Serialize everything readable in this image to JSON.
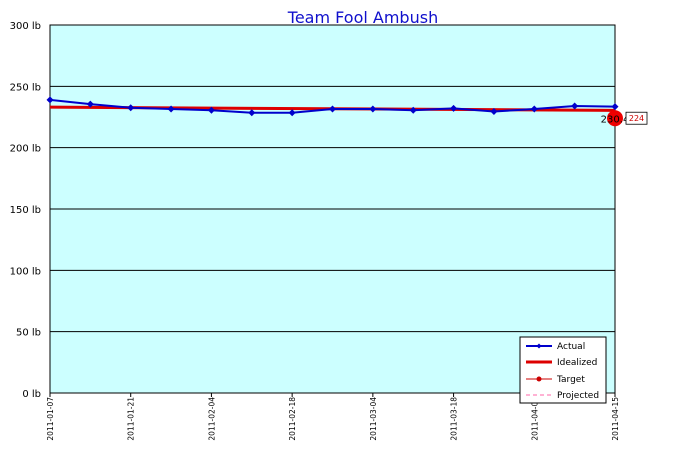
{
  "chart_data": {
    "type": "line",
    "title": "Team Fool Ambush",
    "xlabel": "",
    "ylabel": "",
    "ylim": [
      0,
      300
    ],
    "y_ticks": [
      0,
      50,
      100,
      150,
      200,
      250,
      300
    ],
    "y_tick_labels": [
      "0 lb",
      "50 lb",
      "100 lb",
      "150 lb",
      "200 lb",
      "250 lb",
      "300 lb"
    ],
    "x_tick_labels": [
      "2011-01-07",
      "2011-01-21",
      "2011-02-04",
      "2011-02-18",
      "2011-03-04",
      "2011-03-18",
      "2011-04-01",
      "2011-04-15"
    ],
    "grid": true,
    "legend_position": "bottom-right",
    "colors": {
      "plot_bg": "#ccffff",
      "actual": "#0000cc",
      "idealized": "#dd0000",
      "target": "#cc0000",
      "projected": "#ff66aa",
      "title": "#1010cc"
    },
    "series": [
      {
        "name": "Actual",
        "x": [
          "2011-01-07",
          "2011-01-14",
          "2011-01-21",
          "2011-01-28",
          "2011-02-04",
          "2011-02-11",
          "2011-02-18",
          "2011-02-25",
          "2011-03-04",
          "2011-03-11",
          "2011-03-18",
          "2011-03-25",
          "2011-04-01",
          "2011-04-08",
          "2011-04-15"
        ],
        "values": [
          239,
          235.5,
          232.5,
          231.5,
          230.5,
          228.5,
          228.5,
          231.5,
          231.5,
          230.5,
          232,
          229.5,
          231.5,
          234,
          233.5
        ]
      },
      {
        "name": "Idealized",
        "x": [
          "2011-01-07",
          "2011-04-15"
        ],
        "values": [
          233,
          230.4
        ]
      },
      {
        "name": "Target",
        "x": [
          "2011-04-15"
        ],
        "values": [
          224
        ]
      },
      {
        "name": "Projected",
        "x": [],
        "values": []
      }
    ],
    "annotations": [
      {
        "text": "230.4",
        "x": "2011-04-15",
        "y": 230.4
      },
      {
        "text": "224",
        "x": "2011-04-15",
        "y": 224,
        "boxed": true
      }
    ]
  }
}
